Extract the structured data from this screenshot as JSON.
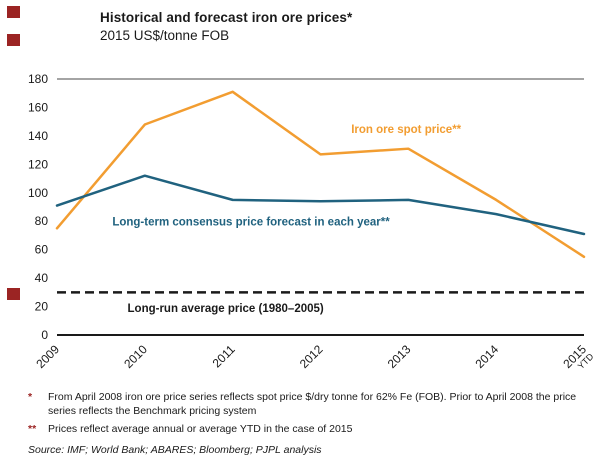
{
  "brand": {
    "accent_color": "#9b2423"
  },
  "header": {
    "title": "Historical and forecast iron ore prices*",
    "subtitle": "2015 US$/tonne FOB"
  },
  "chart_data": {
    "type": "line",
    "title": "Historical and forecast iron ore prices*",
    "unit_label": "2015 US$/tonne FOB",
    "x_tick_labels": [
      "2009",
      "2010",
      "2011",
      "2012",
      "2013",
      "2014",
      "2015 YTD"
    ],
    "y_ticks": [
      0,
      20,
      40,
      60,
      80,
      100,
      120,
      140,
      160,
      180
    ],
    "ylim": [
      0,
      180
    ],
    "grid": false,
    "legend_position": "inline-annotations",
    "series": [
      {
        "name": "Iron ore spot price**",
        "color": "#f29d31",
        "values": [
          75,
          148,
          171,
          127,
          131,
          95,
          55
        ]
      },
      {
        "name": "Long-term consensus price forecast in each year**",
        "color": "#20627f",
        "values": [
          91,
          112,
          95,
          94,
          95,
          85,
          71
        ]
      }
    ],
    "reference_line": {
      "value": 30,
      "style": "dashed",
      "color": "#1a1a1a"
    },
    "annotations": [
      {
        "text": "Iron ore spot price**",
        "color": "#f29d31",
        "x": 3.35,
        "y": 142,
        "anchor": "start"
      },
      {
        "text": "Long-term consensus price forecast in each year**",
        "color": "#20627f",
        "x": 0.63,
        "y": 77,
        "anchor": "start"
      },
      {
        "text": "Long-run average price (1980–2005)",
        "color": "#1a1a1a",
        "x": 1.92,
        "y": 16,
        "anchor": "middle"
      }
    ]
  },
  "footnotes": [
    {
      "marker": "*",
      "text": "From April 2008 iron ore price series reflects spot price $/dry tonne for 62% Fe (FOB). Prior to April 2008 the price series reflects the Benchmark pricing system"
    },
    {
      "marker": "**",
      "text": "Prices reflect average annual or average YTD in the case of 2015"
    }
  ],
  "source": "Source: IMF; World Bank; ABARES; Bloomberg; PJPL analysis"
}
